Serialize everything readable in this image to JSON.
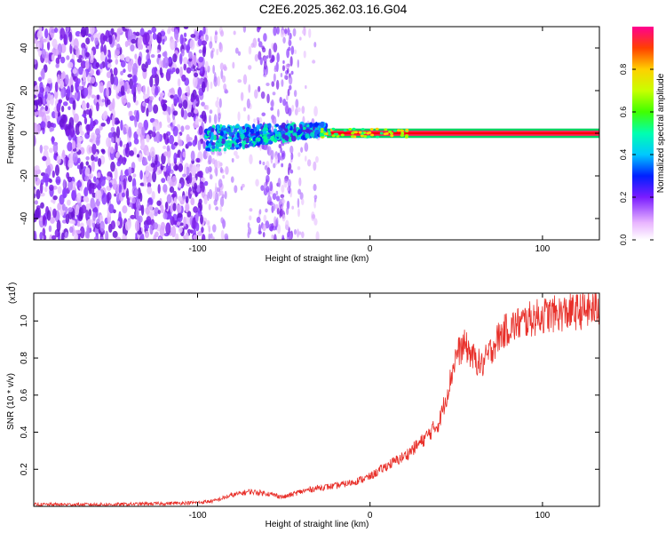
{
  "title": "C2E6.2025.362.03.16.G04",
  "chart_data": [
    {
      "type": "heatmap",
      "xlabel": "Height of straight line (km)",
      "ylabel": "Frequency (Hz)",
      "xlim": [
        -195,
        133
      ],
      "ylim": [
        -50,
        50
      ],
      "xticks": [
        -100,
        0,
        100
      ],
      "yticks": [
        -40,
        -20,
        0,
        20,
        40
      ],
      "colorbar": {
        "label": "Normalized spectral amplitude",
        "range": [
          0,
          1
        ],
        "ticks": [
          "0.0",
          "0.2",
          "0.4",
          "0.6",
          "0.8"
        ]
      },
      "regions": [
        {
          "name": "noise",
          "x": [
            -195,
            -95
          ],
          "freq_range": [
            -50,
            50
          ],
          "amplitude": "0.1-0.3"
        },
        {
          "name": "noise-sparse",
          "x": [
            -95,
            -30
          ],
          "freq_range": [
            -50,
            50
          ],
          "amplitude": "0.05-0.2"
        },
        {
          "name": "signal-emerging",
          "x": [
            -95,
            -25
          ],
          "center_freq": [
            -5,
            5
          ],
          "amplitude": "0.2-0.6"
        },
        {
          "name": "signal-strong",
          "x": [
            -25,
            133
          ],
          "center_freq": 0,
          "amplitude": "0.9-1.0"
        }
      ]
    },
    {
      "type": "line",
      "xlabel": "Height of straight line (km)",
      "ylabel": "SNR (10 * v/v)",
      "yscale_label": "(x10",
      "yscale_exp": "4",
      "xlim": [
        -195,
        133
      ],
      "ylim": [
        0,
        1.15
      ],
      "xticks": [
        -100,
        0,
        100
      ],
      "yticks": [
        0.2,
        0.4,
        0.6,
        0.8,
        1.0
      ],
      "ytick_labels": [
        "0.2",
        "0.4",
        "0.6",
        "0.8",
        "1.0"
      ],
      "series": [
        {
          "color": "#e8302a",
          "x": [
            -195,
            -150,
            -120,
            -100,
            -90,
            -80,
            -70,
            -60,
            -50,
            -40,
            -30,
            -20,
            -10,
            0,
            10,
            20,
            30,
            40,
            45,
            50,
            55,
            60,
            65,
            70,
            75,
            80,
            90,
            100,
            110,
            120,
            133
          ],
          "y": [
            0.01,
            0.01,
            0.015,
            0.02,
            0.03,
            0.06,
            0.08,
            0.07,
            0.05,
            0.08,
            0.1,
            0.11,
            0.13,
            0.16,
            0.22,
            0.27,
            0.35,
            0.45,
            0.62,
            0.82,
            0.87,
            0.8,
            0.76,
            0.84,
            0.92,
            0.96,
            1.0,
            1.03,
            1.04,
            1.05,
            1.07
          ]
        }
      ]
    }
  ]
}
